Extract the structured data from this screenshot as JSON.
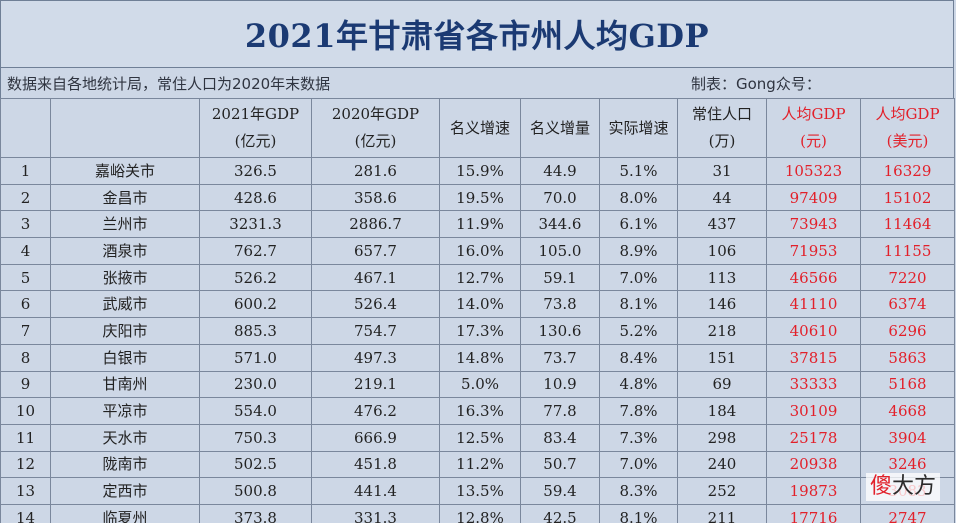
{
  "title": "2021年甘肃省各市州人均GDP",
  "meta": {
    "source": "数据来自各地统计局，常住人口为2020年末数据",
    "maker": "制表：Gong众号："
  },
  "headers": {
    "idx": "",
    "city": "",
    "gdp2021_line1": "2021年GDP",
    "gdp2021_line2": "(亿元)",
    "gdp2020_line1": "2020年GDP",
    "gdp2020_line2": "(亿元)",
    "nominal_rate": "名义增速",
    "nominal_amount": "名义增量",
    "real_rate": "实际增速",
    "pop_line1": "常住人口",
    "pop_line2": "(万)",
    "pc_yuan_line1": "人均GDP",
    "pc_yuan_line2": "(元)",
    "pc_usd_line1": "人均GDP",
    "pc_usd_line2": "(美元)"
  },
  "rows": [
    {
      "idx": "1",
      "city": "嘉峪关市",
      "gdp2021": "326.5",
      "gdp2020": "281.6",
      "nominal_rate": "15.9%",
      "nominal_amount": "44.9",
      "real_rate": "5.1%",
      "pop": "31",
      "pc_yuan": "105323",
      "pc_usd": "16329"
    },
    {
      "idx": "2",
      "city": "金昌市",
      "gdp2021": "428.6",
      "gdp2020": "358.6",
      "nominal_rate": "19.5%",
      "nominal_amount": "70.0",
      "real_rate": "8.0%",
      "pop": "44",
      "pc_yuan": "97409",
      "pc_usd": "15102"
    },
    {
      "idx": "3",
      "city": "兰州市",
      "gdp2021": "3231.3",
      "gdp2020": "2886.7",
      "nominal_rate": "11.9%",
      "nominal_amount": "344.6",
      "real_rate": "6.1%",
      "pop": "437",
      "pc_yuan": "73943",
      "pc_usd": "11464"
    },
    {
      "idx": "4",
      "city": "酒泉市",
      "gdp2021": "762.7",
      "gdp2020": "657.7",
      "nominal_rate": "16.0%",
      "nominal_amount": "105.0",
      "real_rate": "8.9%",
      "pop": "106",
      "pc_yuan": "71953",
      "pc_usd": "11155"
    },
    {
      "idx": "5",
      "city": "张掖市",
      "gdp2021": "526.2",
      "gdp2020": "467.1",
      "nominal_rate": "12.7%",
      "nominal_amount": "59.1",
      "real_rate": "7.0%",
      "pop": "113",
      "pc_yuan": "46566",
      "pc_usd": "7220"
    },
    {
      "idx": "6",
      "city": "武威市",
      "gdp2021": "600.2",
      "gdp2020": "526.4",
      "nominal_rate": "14.0%",
      "nominal_amount": "73.8",
      "real_rate": "8.1%",
      "pop": "146",
      "pc_yuan": "41110",
      "pc_usd": "6374"
    },
    {
      "idx": "7",
      "city": "庆阳市",
      "gdp2021": "885.3",
      "gdp2020": "754.7",
      "nominal_rate": "17.3%",
      "nominal_amount": "130.6",
      "real_rate": "5.2%",
      "pop": "218",
      "pc_yuan": "40610",
      "pc_usd": "6296"
    },
    {
      "idx": "8",
      "city": "白银市",
      "gdp2021": "571.0",
      "gdp2020": "497.3",
      "nominal_rate": "14.8%",
      "nominal_amount": "73.7",
      "real_rate": "8.4%",
      "pop": "151",
      "pc_yuan": "37815",
      "pc_usd": "5863"
    },
    {
      "idx": "9",
      "city": "甘南州",
      "gdp2021": "230.0",
      "gdp2020": "219.1",
      "nominal_rate": "5.0%",
      "nominal_amount": "10.9",
      "real_rate": "4.8%",
      "pop": "69",
      "pc_yuan": "33333",
      "pc_usd": "5168"
    },
    {
      "idx": "10",
      "city": "平凉市",
      "gdp2021": "554.0",
      "gdp2020": "476.2",
      "nominal_rate": "16.3%",
      "nominal_amount": "77.8",
      "real_rate": "7.8%",
      "pop": "184",
      "pc_yuan": "30109",
      "pc_usd": "4668"
    },
    {
      "idx": "11",
      "city": "天水市",
      "gdp2021": "750.3",
      "gdp2020": "666.9",
      "nominal_rate": "12.5%",
      "nominal_amount": "83.4",
      "real_rate": "7.3%",
      "pop": "298",
      "pc_yuan": "25178",
      "pc_usd": "3904"
    },
    {
      "idx": "12",
      "city": "陇南市",
      "gdp2021": "502.5",
      "gdp2020": "451.8",
      "nominal_rate": "11.2%",
      "nominal_amount": "50.7",
      "real_rate": "7.0%",
      "pop": "240",
      "pc_yuan": "20938",
      "pc_usd": "3246"
    },
    {
      "idx": "13",
      "city": "定西市",
      "gdp2021": "500.8",
      "gdp2020": "441.4",
      "nominal_rate": "13.5%",
      "nominal_amount": "59.4",
      "real_rate": "8.3%",
      "pop": "252",
      "pc_yuan": "19873",
      "pc_usd": "3083"
    },
    {
      "idx": "14",
      "city": "临夏州",
      "gdp2021": "373.8",
      "gdp2020": "331.3",
      "nominal_rate": "12.8%",
      "nominal_amount": "42.5",
      "real_rate": "8.1%",
      "pop": "211",
      "pc_yuan": "17716",
      "pc_usd": "2747"
    }
  ],
  "watermark": {
    "char1": "傻",
    "char2": "大方"
  },
  "colors": {
    "title": "#1b3a73",
    "highlight": "#e2202a",
    "background": "#cdd7e6"
  }
}
